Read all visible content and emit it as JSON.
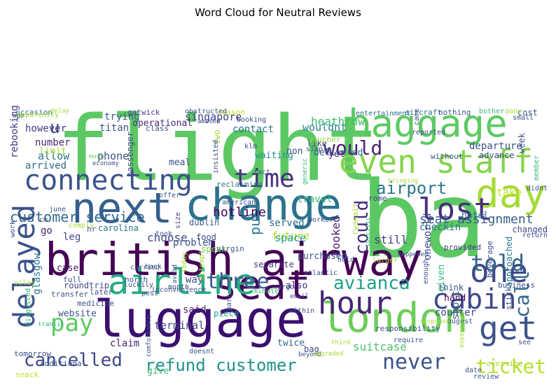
{
  "title": "Word Cloud for Neutral Reviews",
  "words": [
    {
      "text": "flight",
      "color": "#5cc863"
    },
    {
      "text": "ba",
      "color": "#5cc863"
    },
    {
      "text": "british airway",
      "color": "#440154"
    },
    {
      "text": "luggage",
      "color": "#3b0f70"
    },
    {
      "text": "seat",
      "color": "#450559"
    },
    {
      "text": "change",
      "color": "#2c728e"
    },
    {
      "text": "baggage",
      "color": "#5ec962"
    },
    {
      "text": "london",
      "color": "#6ccd5a"
    },
    {
      "text": "hour",
      "color": "#482475"
    },
    {
      "text": "even staff",
      "color": "#84d44b"
    },
    {
      "text": "next",
      "color": "#35608d"
    },
    {
      "text": "airline",
      "color": "#25ab82"
    },
    {
      "text": "one",
      "color": "#3e4989"
    },
    {
      "text": "day",
      "color": "#a5db36"
    },
    {
      "text": "connecting",
      "color": "#3b528b"
    },
    {
      "text": "lost",
      "color": "#472d7b"
    },
    {
      "text": "cabin",
      "color": "#3e4a89"
    },
    {
      "text": "get",
      "color": "#3b528b"
    },
    {
      "text": "delayed",
      "color": "#3b528b"
    },
    {
      "text": "time",
      "color": "#46327e"
    },
    {
      "text": "three",
      "color": "#38588c"
    },
    {
      "text": "told",
      "color": "#33638d"
    },
    {
      "text": "call",
      "color": "#31678e"
    },
    {
      "text": "pay",
      "color": "#5ec962"
    },
    {
      "text": "cancelled",
      "color": "#3e4989"
    },
    {
      "text": "refund customer",
      "color": "#20928c"
    },
    {
      "text": "never",
      "color": "#3b528b"
    },
    {
      "text": "ticket",
      "color": "#b5de2b"
    },
    {
      "text": "would",
      "color": "#482173"
    },
    {
      "text": "airport",
      "color": "#2a788e"
    },
    {
      "text": "avianca",
      "color": "#1fa188"
    },
    {
      "text": "customer service",
      "color": "#31688e"
    },
    {
      "text": "could",
      "color": "#482878"
    },
    {
      "text": "put",
      "color": "#2a788e"
    },
    {
      "text": "u",
      "color": "#3e4989"
    },
    {
      "text": "seat assignment",
      "color": "#355f8d"
    },
    {
      "text": "hotline",
      "color": "#440154"
    },
    {
      "text": "booked",
      "color": "#482475"
    },
    {
      "text": "served",
      "color": "#2f6c8e"
    },
    {
      "text": "future",
      "color": "#addc30"
    },
    {
      "text": "singapore",
      "color": "#414487"
    },
    {
      "text": "contact",
      "color": "#2c728e"
    },
    {
      "text": "heathrow",
      "color": "#3fbc73"
    },
    {
      "text": "wouldnt",
      "color": "#27808e"
    },
    {
      "text": "phone",
      "color": "#3b528b"
    },
    {
      "text": "trying",
      "color": "#38588c"
    },
    {
      "text": "titan",
      "color": "#3b528b"
    },
    {
      "text": "however",
      "color": "#433e85"
    },
    {
      "text": "number",
      "color": "#482878"
    },
    {
      "text": "allow",
      "color": "#2c728e"
    },
    {
      "text": "arrived",
      "color": "#31688e"
    },
    {
      "text": "limit",
      "color": "#a8db34"
    },
    {
      "text": "rebooking",
      "color": "#443983"
    },
    {
      "text": "checkin",
      "color": "#2c728e"
    },
    {
      "text": "still",
      "color": "#433e85"
    },
    {
      "text": "space",
      "color": "#1f9e89"
    },
    {
      "text": "travel",
      "color": "#35b779"
    },
    {
      "text": "choose",
      "color": "#3e4989"
    },
    {
      "text": "leg",
      "color": "#3e4989"
    },
    {
      "text": "go",
      "color": "#482173"
    },
    {
      "text": "carolina",
      "color": "#2c728e"
    },
    {
      "text": "problem",
      "color": "#3b528b"
    },
    {
      "text": "speak",
      "color": "#75d054"
    },
    {
      "text": "take",
      "color": "#c2df23"
    },
    {
      "text": "hotel",
      "color": "#2c728e"
    },
    {
      "text": "departure",
      "color": "#3b528b"
    },
    {
      "text": "delivered",
      "color": "#33638d"
    },
    {
      "text": "waiting",
      "color": "#20928c"
    },
    {
      "text": "suitcase",
      "color": "#4ac16d"
    },
    {
      "text": "terminal",
      "color": "#414487"
    },
    {
      "text": "said",
      "color": "#482878"
    },
    {
      "text": "piece",
      "color": "#1fa188"
    },
    {
      "text": "counter",
      "color": "#414487"
    },
    {
      "text": "glasgow",
      "color": "#2a788e"
    },
    {
      "text": "case",
      "color": "#481467"
    },
    {
      "text": "way",
      "color": "#3e4989"
    },
    {
      "text": "also",
      "color": "#482878"
    },
    {
      "text": "website",
      "color": "#3b528b"
    },
    {
      "text": "claim",
      "color": "#482475"
    },
    {
      "text": "twice",
      "color": "#31688e"
    },
    {
      "text": "bag",
      "color": "#3e4a89"
    },
    {
      "text": "short",
      "color": "#31688e"
    },
    {
      "text": "given",
      "color": "#35b779"
    },
    {
      "text": "hand",
      "color": "#440154"
    },
    {
      "text": "think",
      "color": "#3b528b"
    },
    {
      "text": "changed",
      "color": "#414487"
    },
    {
      "text": "separate",
      "color": "#443983"
    },
    {
      "text": "purchased",
      "color": "#3b528b"
    },
    {
      "text": "give",
      "color": "#3fbc73"
    },
    {
      "text": "meal",
      "color": "#3b528b"
    },
    {
      "text": "gatwick",
      "color": "#414487"
    },
    {
      "text": "operational",
      "color": "#482878"
    },
    {
      "text": "passenger",
      "color": "#414487"
    },
    {
      "text": "occasion",
      "color": "#2a788e"
    },
    {
      "text": "two",
      "color": "#a0da39"
    },
    {
      "text": "yet",
      "color": "#482878"
    },
    {
      "text": "non",
      "color": "#3b528b"
    },
    {
      "text": "like",
      "color": "#3e4a89"
    },
    {
      "text": "north",
      "color": "#3b528b"
    },
    {
      "text": "roundtrip",
      "color": "#3e4989"
    },
    {
      "text": "month",
      "color": "#3b528b"
    },
    {
      "text": "business",
      "color": "#3b528b"
    },
    {
      "text": "stick",
      "color": "#3b528b"
    },
    {
      "text": "approached",
      "color": "#2a788e"
    },
    {
      "text": "beverage",
      "color": "#3b528b"
    },
    {
      "text": "oneworld",
      "color": "#3e4989"
    },
    {
      "text": "provided",
      "color": "#46327e"
    },
    {
      "text": "tomorrow",
      "color": "#3b528b"
    },
    {
      "text": "additional",
      "color": "#3b528b"
    },
    {
      "text": "snack",
      "color": "#bddf26"
    },
    {
      "text": "doesnt",
      "color": "#3b528b"
    },
    {
      "text": "food",
      "color": "#3e4989"
    },
    {
      "text": "hr",
      "color": "#3e4989"
    },
    {
      "text": "cm",
      "color": "#3e4989"
    },
    {
      "text": "dublin",
      "color": "#35608d"
    },
    {
      "text": "size",
      "color": "#414487"
    },
    {
      "text": "reclaiming",
      "color": "#2a788e"
    },
    {
      "text": "virgin",
      "color": "#3b528b"
    },
    {
      "text": "ryanair",
      "color": "#a5db36"
    },
    {
      "text": "rome",
      "color": "#3e4989"
    },
    {
      "text": "atlantic",
      "color": "#3b528b"
    },
    {
      "text": "cargo",
      "color": "#3b528b"
    },
    {
      "text": "klm",
      "color": "#3e4989"
    },
    {
      "text": "reason",
      "color": "#c2df23"
    },
    {
      "text": "booking",
      "color": "#3e4989"
    },
    {
      "text": "voucher",
      "color": "#90d743"
    },
    {
      "text": "simple",
      "color": "#3b528b"
    },
    {
      "text": "entertainment",
      "color": "#2c728e"
    },
    {
      "text": "aircraft",
      "color": "#2c728e"
    },
    {
      "text": "nothing",
      "color": "#3b528b"
    },
    {
      "text": "cost",
      "color": "#3b528b"
    },
    {
      "text": "small",
      "color": "#3b528b"
    },
    {
      "text": "week",
      "color": "#3b528b"
    },
    {
      "text": "advance",
      "color": "#3b528b"
    },
    {
      "text": "without",
      "color": "#3b528b"
    },
    {
      "text": "didnt",
      "color": "#3b528b"
    },
    {
      "text": "return",
      "color": "#3b528b"
    },
    {
      "text": "bother",
      "color": "#35b779"
    },
    {
      "text": "done",
      "color": "#a8db34"
    },
    {
      "text": "member",
      "color": "#35b779"
    },
    {
      "text": "oversize",
      "color": "#a8db34"
    },
    {
      "text": "date",
      "color": "#3b528b"
    },
    {
      "text": "review",
      "color": "#3b528b"
    },
    {
      "text": "see",
      "color": "#3b528b"
    },
    {
      "text": "august",
      "color": "#3b528b"
    },
    {
      "text": "responsibility",
      "color": "#3b528b"
    },
    {
      "text": "require",
      "color": "#3b528b"
    },
    {
      "text": "third",
      "color": "#addc30"
    },
    {
      "text": "response",
      "color": "#a8db34"
    },
    {
      "text": "expensive",
      "color": "#a5db36"
    },
    {
      "text": "within",
      "color": "#3b528b"
    },
    {
      "text": "minute",
      "color": "#35b779"
    },
    {
      "text": "part",
      "color": "#3b528b"
    },
    {
      "text": "email",
      "color": "#3e4989"
    },
    {
      "text": "later",
      "color": "#3b528b"
    },
    {
      "text": "luckily",
      "color": "#3b528b"
    },
    {
      "text": "post",
      "color": "#3b528b"
    },
    {
      "text": "inconvenience",
      "color": "#3b528b"
    },
    {
      "text": "transfer",
      "color": "#3b528b"
    },
    {
      "text": "medicine",
      "color": "#3b528b"
    },
    {
      "text": "back",
      "color": "#3b528b"
    },
    {
      "text": "full",
      "color": "#3b528b"
    },
    {
      "text": "took",
      "color": "#3b528b"
    },
    {
      "text": "offer",
      "color": "#3b528b"
    },
    {
      "text": "american",
      "color": "#3b528b"
    },
    {
      "text": "economy",
      "color": "#3b528b"
    },
    {
      "text": "much",
      "color": "#75d054"
    },
    {
      "text": "class",
      "color": "#3b528b"
    },
    {
      "text": "insisted",
      "color": "#3e4989"
    },
    {
      "text": "obstructed",
      "color": "#3b528b"
    },
    {
      "text": "amused",
      "color": "#3b528b"
    },
    {
      "text": "fact",
      "color": "#3b528b"
    },
    {
      "text": "generic",
      "color": "#35b779"
    },
    {
      "text": "bringing",
      "color": "#a8db34"
    },
    {
      "text": "happened",
      "color": "#3b528b"
    },
    {
      "text": "reported",
      "color": "#3b528b"
    },
    {
      "text": "came",
      "color": "#3b528b"
    },
    {
      "text": "worker",
      "color": "#3b528b"
    },
    {
      "text": "larger",
      "color": "#a8db34"
    },
    {
      "text": "hold",
      "color": "#3b528b"
    },
    {
      "text": "enough",
      "color": "#3b528b"
    },
    {
      "text": "comply",
      "color": "#a8db34"
    },
    {
      "text": "june",
      "color": "#3b528b"
    },
    {
      "text": "carried",
      "color": "#3b528b"
    },
    {
      "text": "avoid",
      "color": "#3b528b"
    },
    {
      "text": "attempt",
      "color": "#a5db36"
    },
    {
      "text": "specific",
      "color": "#35b779"
    },
    {
      "text": "today",
      "color": "#addc30"
    },
    {
      "text": "vilas",
      "color": "#a8db34"
    },
    {
      "text": "work",
      "color": "#3b528b"
    },
    {
      "text": "disgusted",
      "color": "#35b779"
    },
    {
      "text": "transit",
      "color": "#35b779"
    },
    {
      "text": "comfortable",
      "color": "#3b528b"
    },
    {
      "text": "ago",
      "color": "#3b528b"
    },
    {
      "text": "delay",
      "color": "#a5db36"
    },
    {
      "text": "beyond",
      "color": "#3b528b"
    },
    {
      "text": "upgraded",
      "color": "#a8db34"
    },
    {
      "text": "apparently",
      "color": "#a8db34"
    }
  ]
}
